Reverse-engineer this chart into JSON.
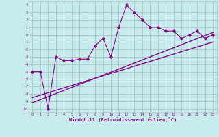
{
  "xlabel": "Windchill (Refroidissement éolien,°C)",
  "bg_color": "#c8ecec",
  "grid_color": "#a8c8c8",
  "line_color": "#880088",
  "x_data": [
    0,
    1,
    2,
    3,
    4,
    5,
    6,
    7,
    8,
    9,
    10,
    11,
    12,
    13,
    14,
    15,
    16,
    17,
    18,
    19,
    20,
    21,
    22,
    23
  ],
  "y_scatter": [
    -5.0,
    -5.0,
    -10.0,
    -3.0,
    -3.5,
    -3.5,
    -3.3,
    -3.3,
    -1.5,
    -0.5,
    -3.0,
    1.0,
    4.0,
    3.0,
    2.0,
    1.0,
    1.0,
    0.5,
    0.5,
    -0.5,
    0.0,
    0.5,
    -0.5,
    0.0
  ],
  "line1_x": [
    0,
    23
  ],
  "line1_y": [
    -8.5,
    -1.0
  ],
  "line2_x": [
    0,
    23
  ],
  "line2_y": [
    -9.2,
    0.3
  ],
  "xlim": [
    -0.5,
    23.5
  ],
  "ylim": [
    -10.5,
    4.5
  ],
  "yticks": [
    4,
    3,
    2,
    1,
    0,
    -1,
    -2,
    -3,
    -4,
    -5,
    -6,
    -7,
    -8,
    -9,
    -10
  ],
  "xticks": [
    0,
    1,
    2,
    3,
    4,
    5,
    6,
    7,
    8,
    9,
    10,
    11,
    12,
    13,
    14,
    15,
    16,
    17,
    18,
    19,
    20,
    21,
    22,
    23
  ],
  "tick_fontsize": 3.8,
  "xlabel_fontsize": 5.0
}
